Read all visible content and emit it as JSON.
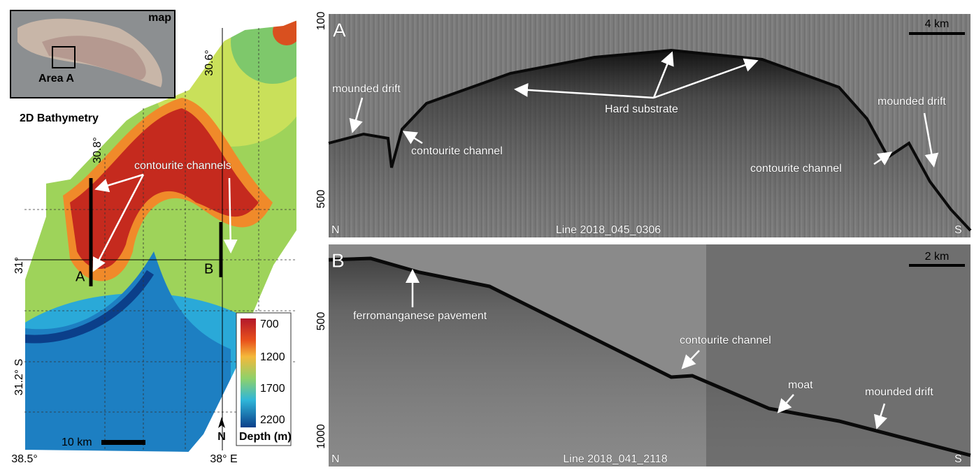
{
  "map": {
    "inset_label": "map",
    "inset_area": "Area A",
    "title": "2D Bathymetry",
    "lat_labels": [
      "30.6°",
      "30.8°",
      "31°",
      "31.2° S"
    ],
    "lon_labels": [
      "38.5°",
      "38° E"
    ],
    "annotation": "contourite channels",
    "profile_labels": [
      "A",
      "B"
    ],
    "scale_bar": "10 km",
    "north": "N",
    "legend": {
      "title": "Depth (m)",
      "values": [
        700,
        1200,
        1700,
        2200
      ]
    }
  },
  "panels": [
    {
      "label": "A",
      "depth_ticks": [
        100,
        500
      ],
      "scale_bar": "4 km",
      "annotations": [
        "mounded drift",
        "contourite channel",
        "Hard substrate",
        "mounded drift",
        "contourite channel"
      ],
      "start": "N",
      "end": "S",
      "line": "Line 2018_045_0306"
    },
    {
      "label": "B",
      "depth_ticks": [
        500,
        1000
      ],
      "scale_bar": "2 km",
      "annotations": [
        "ferromanganese pavement",
        "contourite channel",
        "moat",
        "mounded drift"
      ],
      "start": "N",
      "end": "S",
      "line": "Line 2018_041_2118"
    }
  ]
}
